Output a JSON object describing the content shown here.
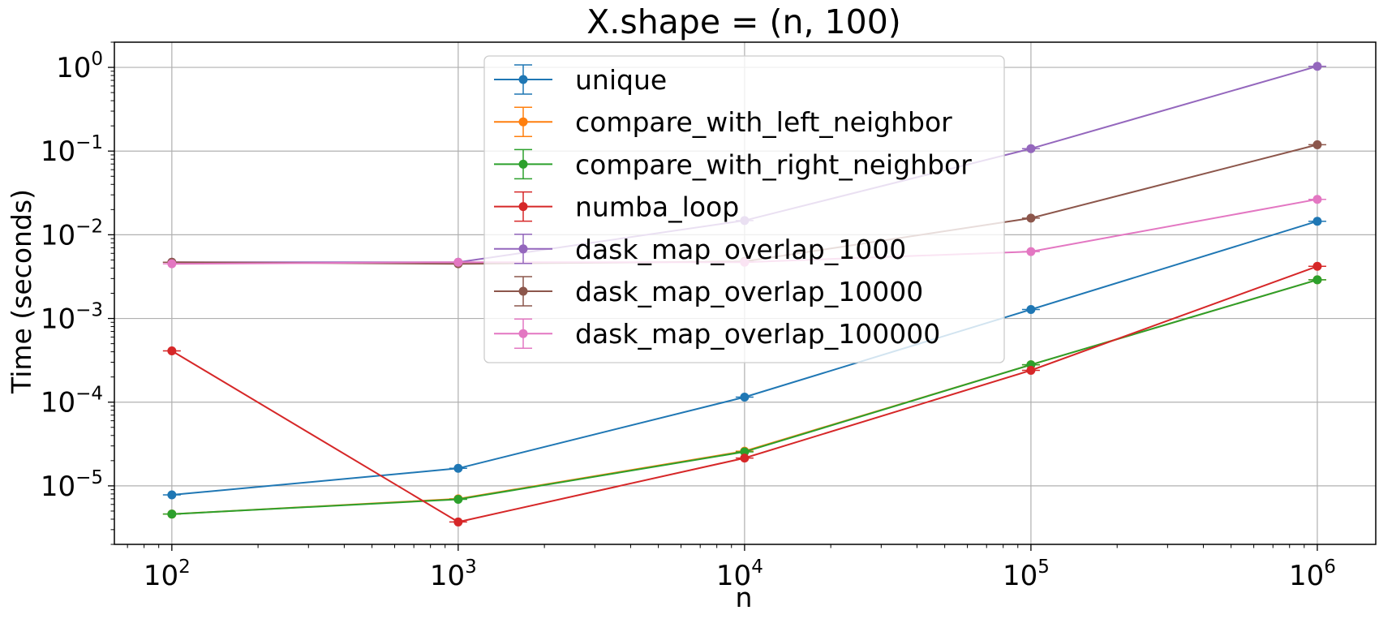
{
  "chart_data": {
    "type": "line",
    "title": "X.shape = (n, 100)",
    "xlabel": "n",
    "ylabel": "Time (seconds)",
    "xscale": "log",
    "yscale": "log",
    "xlim": [
      63,
      1600000
    ],
    "ylim": [
      2e-06,
      2
    ],
    "grid": true,
    "legend_position": "top-center",
    "x": [
      100,
      1000,
      10000,
      100000,
      1000000
    ],
    "x_ticks": [
      {
        "value": 100,
        "base": "10",
        "exp": "2"
      },
      {
        "value": 1000,
        "base": "10",
        "exp": "3"
      },
      {
        "value": 10000,
        "base": "10",
        "exp": "4"
      },
      {
        "value": 100000,
        "base": "10",
        "exp": "5"
      },
      {
        "value": 1000000,
        "base": "10",
        "exp": "6"
      }
    ],
    "y_ticks": [
      {
        "value": 1e-05,
        "base": "10",
        "exp": "−5"
      },
      {
        "value": 0.0001,
        "base": "10",
        "exp": "−4"
      },
      {
        "value": 0.001,
        "base": "10",
        "exp": "−3"
      },
      {
        "value": 0.01,
        "base": "10",
        "exp": "−2"
      },
      {
        "value": 0.1,
        "base": "10",
        "exp": "−1"
      },
      {
        "value": 1,
        "base": "10",
        "exp": "0"
      }
    ],
    "series": [
      {
        "name": "unique",
        "color": "#1f77b4",
        "values": [
          7.8e-06,
          1.62e-05,
          0.000115,
          0.00128,
          0.0145
        ]
      },
      {
        "name": "compare_with_left_neighbor",
        "color": "#ff7f0e",
        "values": [
          4.6e-06,
          7e-06,
          2.6e-05,
          0.00028,
          0.0029
        ]
      },
      {
        "name": "compare_with_right_neighbor",
        "color": "#2ca02c",
        "values": [
          4.6e-06,
          6.9e-06,
          2.55e-05,
          0.00028,
          0.0029
        ]
      },
      {
        "name": "numba_loop",
        "color": "#d62728",
        "values": [
          0.00041,
          3.7e-06,
          2.15e-05,
          0.00024,
          0.0042
        ]
      },
      {
        "name": "dask_map_overlap_1000",
        "color": "#9467bd",
        "values": [
          0.0047,
          0.0047,
          0.0148,
          0.107,
          1.03
        ]
      },
      {
        "name": "dask_map_overlap_10000",
        "color": "#8c564b",
        "values": [
          0.0047,
          0.0045,
          0.0048,
          0.0158,
          0.119
        ]
      },
      {
        "name": "dask_map_overlap_100000",
        "color": "#e377c2",
        "values": [
          0.0045,
          0.0047,
          0.0047,
          0.0063,
          0.0265
        ]
      }
    ]
  }
}
